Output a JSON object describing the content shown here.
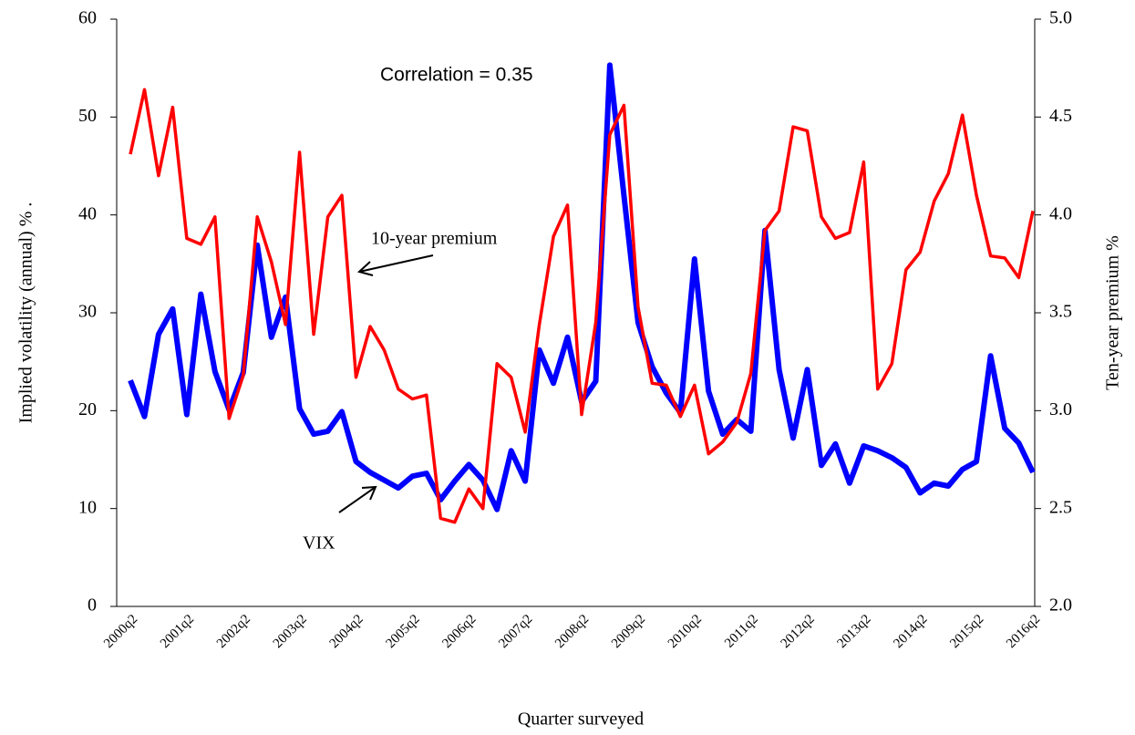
{
  "chart_data": {
    "type": "line",
    "annotation": "Correlation = 0.35",
    "x_label": "Quarter surveyed",
    "y_label": "Implied volatility (annual) % .",
    "y2_label": "Ten-year premium %",
    "categories": [
      "2000q2",
      null,
      null,
      null,
      "2001q2",
      null,
      null,
      null,
      "2002q2",
      null,
      null,
      null,
      "2003q2",
      null,
      null,
      null,
      "2004q2",
      null,
      null,
      null,
      "2005q2",
      null,
      null,
      null,
      "2006q2",
      null,
      null,
      null,
      "2007q2",
      null,
      null,
      null,
      "2008q2",
      null,
      null,
      null,
      "2009q2",
      null,
      null,
      null,
      "2010q2",
      null,
      null,
      null,
      "2011q2",
      null,
      null,
      null,
      "2012q2",
      null,
      null,
      null,
      "2013q2",
      null,
      null,
      null,
      "2014q2",
      null,
      null,
      null,
      "2015q2",
      null,
      null,
      null,
      "2016q2"
    ],
    "series": [
      {
        "name": "VIX",
        "color": "#0000ff",
        "values": [
          23.1,
          19.4,
          27.8,
          30.4,
          19.6,
          31.9,
          24.0,
          20.1,
          23.9,
          36.9,
          27.5,
          31.6,
          20.2,
          17.6,
          17.9,
          19.9,
          14.8,
          13.7,
          12.9,
          12.1,
          13.3,
          13.6,
          10.9,
          12.8,
          14.5,
          12.9,
          9.9,
          15.9,
          12.8,
          26.2,
          22.8,
          27.5,
          20.9,
          23.0,
          55.3,
          42.0,
          29.0,
          24.5,
          21.8,
          19.8,
          35.5,
          22.0,
          17.6,
          19.1,
          17.9,
          38.4,
          24.2,
          17.2,
          24.2,
          14.4,
          16.6,
          12.6,
          16.4,
          15.9,
          15.2,
          14.2,
          11.6,
          12.6,
          12.3,
          14.0,
          14.8,
          25.6,
          18.2,
          16.7,
          13.7
        ]
      },
      {
        "name": "10-year premium",
        "color": "#ff0000",
        "axis": "y2",
        "values": [
          4.31,
          4.64,
          4.2,
          4.55,
          3.88,
          3.85,
          3.99,
          2.96,
          3.18,
          3.99,
          3.76,
          3.44,
          4.32,
          3.39,
          3.99,
          4.1,
          3.17,
          3.43,
          3.31,
          3.11,
          3.06,
          3.08,
          2.45,
          2.43,
          2.6,
          2.5,
          3.24,
          3.17,
          2.89,
          3.44,
          3.89,
          4.05,
          2.98,
          3.45,
          4.41,
          4.56,
          3.53,
          3.14,
          3.13,
          2.97,
          3.13,
          2.78,
          2.84,
          2.94,
          3.19,
          3.92,
          4.02,
          4.45,
          4.43,
          3.99,
          3.88,
          3.91,
          4.27,
          3.11,
          3.24,
          3.72,
          3.81,
          4.07,
          4.21,
          4.51,
          4.1,
          3.79,
          3.78,
          3.68,
          4.02
        ]
      }
    ],
    "ylim": [
      0,
      60
    ],
    "yticks": [
      0,
      10,
      20,
      30,
      40,
      50,
      60
    ],
    "y2lim": [
      2,
      5
    ],
    "y2ticks": [
      {
        "value": 2,
        "label": "2.0"
      },
      2.5,
      {
        "value": 3,
        "label": "3.0"
      },
      3.5,
      {
        "value": 4,
        "label": "4.0"
      },
      4.5,
      {
        "value": 5,
        "label": "5.0"
      }
    ],
    "grid": false
  }
}
